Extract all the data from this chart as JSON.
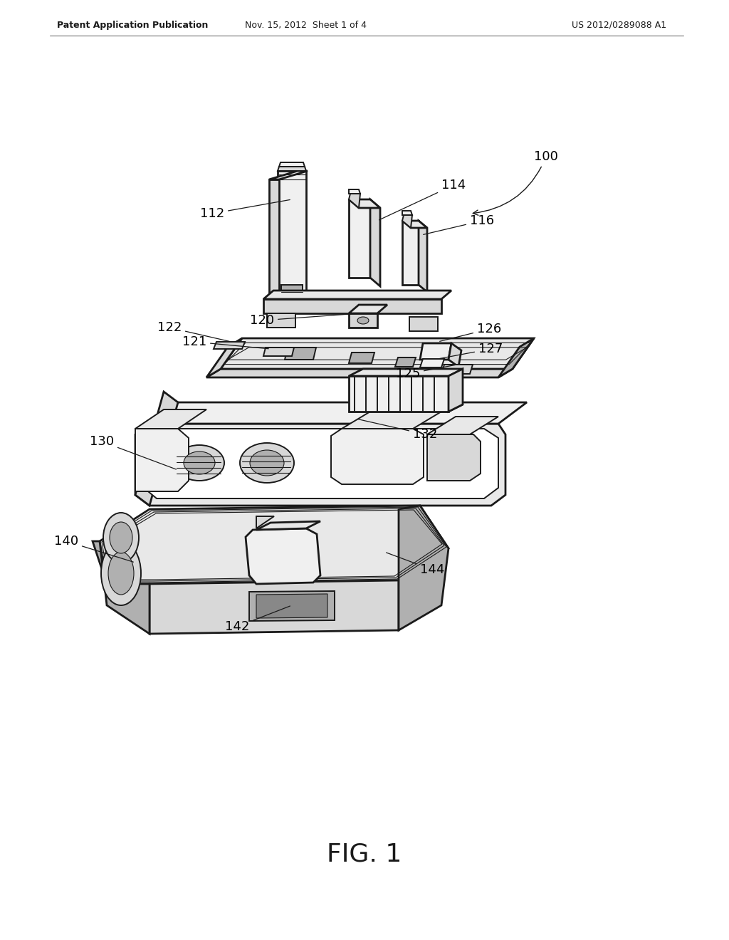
{
  "background_color": "#ffffff",
  "line_color": "#1a1a1a",
  "header_left": "Patent Application Publication",
  "header_center": "Nov. 15, 2012  Sheet 1 of 4",
  "header_right": "US 2012/0289088 A1",
  "figure_label": "FIG. 1",
  "header_fontsize": 9,
  "label_fontsize": 13,
  "fig_label_fontsize": 26,
  "lw_thick": 2.0,
  "lw_med": 1.4,
  "lw_thin": 0.8,
  "gray_light": "#f0f0f0",
  "gray_mid": "#d8d8d8",
  "gray_dark": "#b0b0b0",
  "gray_fill": "#e8e8e8"
}
